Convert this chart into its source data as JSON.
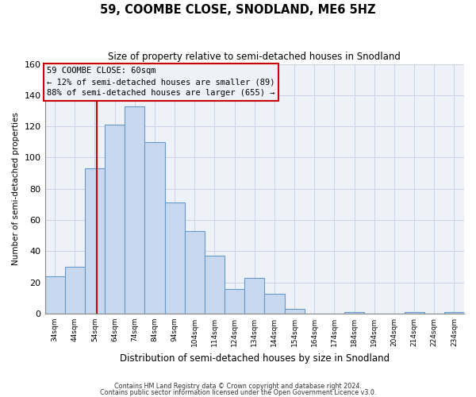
{
  "title": "59, COOMBE CLOSE, SNODLAND, ME6 5HZ",
  "subtitle": "Size of property relative to semi-detached houses in Snodland",
  "xlabel": "Distribution of semi-detached houses by size in Snodland",
  "ylabel": "Number of semi-detached properties",
  "bins": [
    34,
    44,
    54,
    64,
    74,
    84,
    94,
    104,
    114,
    124,
    134,
    144,
    154,
    164,
    174,
    184,
    194,
    204,
    214,
    224,
    234,
    244
  ],
  "counts": [
    24,
    30,
    93,
    121,
    133,
    110,
    71,
    53,
    37,
    16,
    23,
    13,
    3,
    0,
    0,
    1,
    0,
    0,
    1,
    0,
    1
  ],
  "bar_color": "#c8d8ee",
  "bar_edge_color": "#6699cc",
  "property_size": 60,
  "pct_smaller": 12,
  "n_smaller": 89,
  "pct_larger": 88,
  "n_larger": 655,
  "vline_color": "#cc0000",
  "ylim": [
    0,
    160
  ],
  "yticks": [
    0,
    20,
    40,
    60,
    80,
    100,
    120,
    140,
    160
  ],
  "tick_labels": [
    "34sqm",
    "44sqm",
    "54sqm",
    "64sqm",
    "74sqm",
    "84sqm",
    "94sqm",
    "104sqm",
    "114sqm",
    "124sqm",
    "134sqm",
    "144sqm",
    "154sqm",
    "164sqm",
    "174sqm",
    "184sqm",
    "194sqm",
    "204sqm",
    "214sqm",
    "224sqm",
    "234sqm"
  ],
  "footnote1": "Contains HM Land Registry data © Crown copyright and database right 2024.",
  "footnote2": "Contains public sector information licensed under the Open Government Licence v3.0.",
  "grid_color": "#c8d4e8",
  "background_color": "#ffffff",
  "plot_bg_color": "#eef2f8"
}
